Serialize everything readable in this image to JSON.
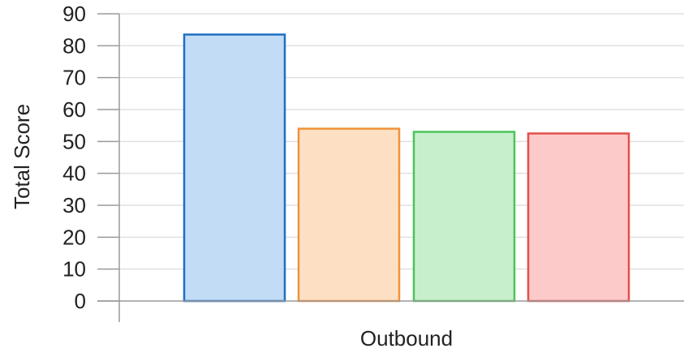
{
  "chart_data": {
    "type": "bar",
    "title": "",
    "xlabel": "Outbound",
    "ylabel": "Total Score",
    "ylim": [
      0,
      90
    ],
    "yticks": [
      0,
      10,
      20,
      30,
      40,
      50,
      60,
      70,
      80,
      90
    ],
    "grid": true,
    "legend": "none",
    "categories": [
      "Outbound"
    ],
    "series": [
      {
        "values": [
          83.5
        ],
        "fill": "#c2dcf5",
        "stroke": "#1f6fc4"
      },
      {
        "values": [
          54
        ],
        "fill": "#fde0c4",
        "stroke": "#f0923a"
      },
      {
        "values": [
          53
        ],
        "fill": "#c8efcb",
        "stroke": "#4ac45a"
      },
      {
        "values": [
          52.5
        ],
        "fill": "#fdcaca",
        "stroke": "#e0504a"
      }
    ],
    "colors": {
      "grid": "#e0e0e0",
      "axis": "#9a9a9a",
      "text": "#222222"
    }
  }
}
